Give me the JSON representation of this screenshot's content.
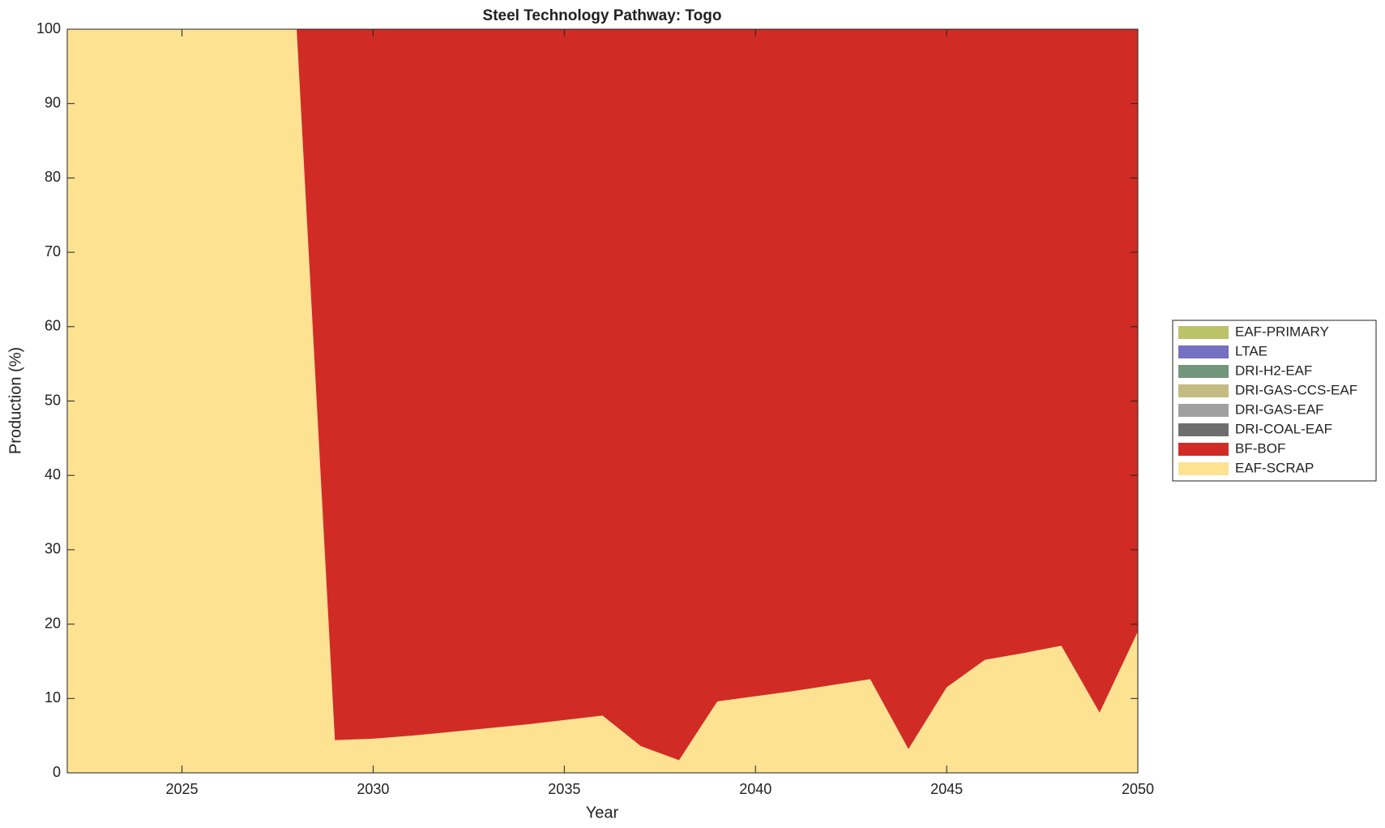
{
  "chart_data": {
    "type": "stacked_area",
    "title": "Steel Technology Pathway: Togo",
    "xlabel": "Year",
    "ylabel": "Production (%)",
    "x": [
      2022,
      2023,
      2024,
      2025,
      2026,
      2027,
      2028,
      2029,
      2030,
      2031,
      2032,
      2033,
      2034,
      2035,
      2036,
      2037,
      2038,
      2039,
      2040,
      2041,
      2042,
      2043,
      2044,
      2045,
      2046,
      2047,
      2048,
      2049,
      2050
    ],
    "series": [
      {
        "name": "EAF-SCRAP",
        "color": "#fde292",
        "values": [
          100,
          100,
          100,
          100,
          100,
          100,
          100,
          4.4,
          4.6,
          5.0,
          5.5,
          6.0,
          6.5,
          7.1,
          7.7,
          3.6,
          1.7,
          9.6,
          10.3,
          11.0,
          11.8,
          12.6,
          3.2,
          11.5,
          15.2,
          16.1,
          17.1,
          8.1,
          19.0
        ]
      },
      {
        "name": "BF-BOF",
        "color": "#d12b25",
        "values": [
          0,
          0,
          0,
          0,
          0,
          0,
          0,
          95.6,
          95.4,
          95.0,
          94.5,
          94.0,
          93.5,
          92.9,
          92.3,
          96.4,
          98.3,
          90.4,
          89.7,
          89.0,
          88.2,
          87.4,
          96.8,
          88.5,
          84.8,
          83.9,
          82.9,
          91.9,
          81.0
        ]
      },
      {
        "name": "DRI-COAL-EAF",
        "color": "#6e6e6e",
        "values": [
          0,
          0,
          0,
          0,
          0,
          0,
          0,
          0,
          0,
          0,
          0,
          0,
          0,
          0,
          0,
          0,
          0,
          0,
          0,
          0,
          0,
          0,
          0,
          0,
          0,
          0,
          0,
          0,
          0
        ]
      },
      {
        "name": "DRI-GAS-EAF",
        "color": "#a0a0a0",
        "values": [
          0,
          0,
          0,
          0,
          0,
          0,
          0,
          0,
          0,
          0,
          0,
          0,
          0,
          0,
          0,
          0,
          0,
          0,
          0,
          0,
          0,
          0,
          0,
          0,
          0,
          0,
          0,
          0,
          0
        ]
      },
      {
        "name": "DRI-GAS-CCS-EAF",
        "color": "#c4bb82",
        "values": [
          0,
          0,
          0,
          0,
          0,
          0,
          0,
          0,
          0,
          0,
          0,
          0,
          0,
          0,
          0,
          0,
          0,
          0,
          0,
          0,
          0,
          0,
          0,
          0,
          0,
          0,
          0,
          0,
          0
        ]
      },
      {
        "name": "DRI-H2-EAF",
        "color": "#72967b",
        "values": [
          0,
          0,
          0,
          0,
          0,
          0,
          0,
          0,
          0,
          0,
          0,
          0,
          0,
          0,
          0,
          0,
          0,
          0,
          0,
          0,
          0,
          0,
          0,
          0,
          0,
          0,
          0,
          0,
          0
        ]
      },
      {
        "name": "LTAE",
        "color": "#7570c0",
        "values": [
          0,
          0,
          0,
          0,
          0,
          0,
          0,
          0,
          0,
          0,
          0,
          0,
          0,
          0,
          0,
          0,
          0,
          0,
          0,
          0,
          0,
          0,
          0,
          0,
          0,
          0,
          0,
          0,
          0
        ]
      },
      {
        "name": "EAF-PRIMARY",
        "color": "#bcc26a",
        "values": [
          0,
          0,
          0,
          0,
          0,
          0,
          0,
          0,
          0,
          0,
          0,
          0,
          0,
          0,
          0,
          0,
          0,
          0,
          0,
          0,
          0,
          0,
          0,
          0,
          0,
          0,
          0,
          0,
          0
        ]
      }
    ],
    "xlim": [
      2022,
      2050
    ],
    "ylim": [
      0,
      100
    ],
    "xticks": [
      2025,
      2030,
      2035,
      2040,
      2045,
      2050
    ],
    "yticks": [
      0,
      10,
      20,
      30,
      40,
      50,
      60,
      70,
      80,
      90,
      100
    ],
    "legend": "right"
  }
}
